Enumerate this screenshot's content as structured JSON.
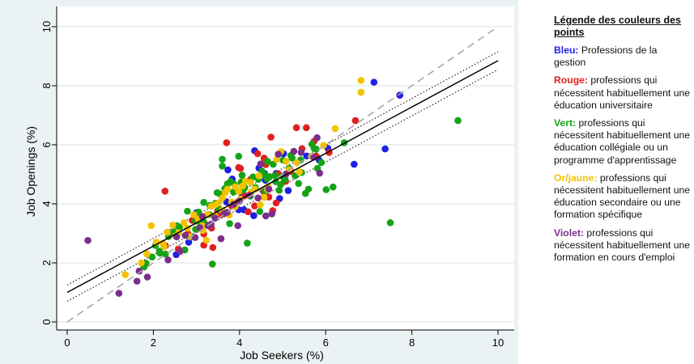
{
  "legend": {
    "title": "Légende des couleurs des points",
    "entries": [
      {
        "key": "Bleu:",
        "text": " Professions de la gestion",
        "color": "#1f1fe6"
      },
      {
        "key": "Rouge:",
        "text": " professions qui nécessitent habituellement une éducation universitaire",
        "color": "#e11f1f"
      },
      {
        "key": "Vert:",
        "text": " professions qui nécessitent habituellement une éducation collégiale ou un programme d'apprentissage",
        "color": "#14a314"
      },
      {
        "key": "Or/jaune:",
        "text": " professions qui nécessitent habituellement une éducation secondaire ou une formation spécifique",
        "color": "#f2c300"
      },
      {
        "key": "Violet:",
        "text": " professions qui nécessitent habituellement une formation en cours d'emploi",
        "color": "#7b2e8c"
      }
    ]
  },
  "chart_data": {
    "type": "scatter",
    "xlabel": "Job Seekers (%)",
    "ylabel": "Job Openings (%)",
    "xlim": [
      0,
      10
    ],
    "ylim": [
      0,
      10
    ],
    "xticks": [
      0,
      2,
      4,
      6,
      8,
      10
    ],
    "yticks": [
      0,
      2,
      4,
      6,
      8,
      10
    ],
    "grid": true,
    "colors": {
      "blue": "#1f1fe6",
      "red": "#e11f1f",
      "green": "#14a314",
      "gold": "#f2c300",
      "purple": "#7b2e8c",
      "fit": "#000000",
      "diagonal": "#a8a8a8"
    },
    "lines": {
      "fit": {
        "x": [
          0,
          10
        ],
        "y": [
          1.0,
          8.85
        ]
      },
      "ci_upper": {
        "x": [
          0,
          10
        ],
        "y": [
          1.25,
          9.15
        ]
      },
      "ci_lower": {
        "x": [
          0,
          10
        ],
        "y": [
          0.7,
          8.55
        ]
      },
      "diagonal": {
        "x": [
          0,
          10
        ],
        "y": [
          0,
          10
        ]
      }
    },
    "series": [
      {
        "color_key": "blue",
        "points": [
          [
            4.33,
            3.6
          ],
          [
            4.93,
            4.18
          ],
          [
            5.56,
            5.62
          ],
          [
            5.85,
            5.48
          ],
          [
            6.05,
            5.88
          ],
          [
            7.12,
            8.12
          ],
          [
            7.72,
            7.68
          ],
          [
            7.38,
            5.86
          ],
          [
            6.66,
            5.34
          ],
          [
            3.73,
            5.15
          ],
          [
            2.53,
            2.28
          ],
          [
            2.82,
            2.7
          ],
          [
            4.6,
            4.8
          ],
          [
            5.13,
            4.45
          ],
          [
            4.05,
            4.22
          ],
          [
            5.02,
            5.7
          ],
          [
            3.83,
            4.84
          ],
          [
            4.58,
            5.03
          ],
          [
            4.45,
            5.21
          ],
          [
            4.1,
            3.8
          ],
          [
            3.7,
            4.06
          ],
          [
            4.35,
            5.8
          ],
          [
            4.85,
            5.03
          ],
          [
            3.98,
            3.8
          ],
          [
            3.0,
            3.7
          ]
        ]
      },
      {
        "color_key": "red",
        "points": [
          [
            2.27,
            4.43
          ],
          [
            2.28,
            2.58
          ],
          [
            2.58,
            2.47
          ],
          [
            2.8,
            2.99
          ],
          [
            3.17,
            2.6
          ],
          [
            3.29,
            3.27
          ],
          [
            3.38,
            2.52
          ],
          [
            3.56,
            3.63
          ],
          [
            3.7,
            6.07
          ],
          [
            3.84,
            3.99
          ],
          [
            3.96,
            4.06
          ],
          [
            4.12,
            4.28
          ],
          [
            4.25,
            4.82
          ],
          [
            4.35,
            3.93
          ],
          [
            4.55,
            4.43
          ],
          [
            4.57,
            5.55
          ],
          [
            4.73,
            6.26
          ],
          [
            4.9,
            5.02
          ],
          [
            5.07,
            4.76
          ],
          [
            5.19,
            5.1
          ],
          [
            5.32,
            6.58
          ],
          [
            5.55,
            6.58
          ],
          [
            5.73,
            6.12
          ],
          [
            5.78,
            5.62
          ],
          [
            6.08,
            5.74
          ],
          [
            6.69,
            6.82
          ],
          [
            4.02,
            5.2
          ],
          [
            3.49,
            3.76
          ],
          [
            3.98,
            5.23
          ],
          [
            4.85,
            4.03
          ],
          [
            3.35,
            3.18
          ],
          [
            4.2,
            3.73
          ],
          [
            5.45,
            5.87
          ],
          [
            4.42,
            5.7
          ],
          [
            3.82,
            3.92
          ],
          [
            2.9,
            3.44
          ],
          [
            3.17,
            2.98
          ],
          [
            4.61,
            5.33
          ],
          [
            5.04,
            4.77
          ],
          [
            4.77,
            3.77
          ],
          [
            3.0,
            3.13
          ],
          [
            4.68,
            4.23
          ]
        ]
      },
      {
        "color_key": "green",
        "points": [
          [
            1.78,
            1.86
          ],
          [
            1.83,
            1.99
          ],
          [
            1.97,
            2.2
          ],
          [
            2.05,
            2.59
          ],
          [
            2.14,
            2.4
          ],
          [
            2.28,
            2.3
          ],
          [
            2.35,
            2.89
          ],
          [
            2.47,
            3.05
          ],
          [
            2.55,
            3.26
          ],
          [
            2.61,
            3.21
          ],
          [
            2.73,
            2.44
          ],
          [
            2.79,
            3.75
          ],
          [
            2.87,
            2.88
          ],
          [
            2.98,
            3.14
          ],
          [
            3.09,
            3.35
          ],
          [
            3.17,
            3.38
          ],
          [
            3.26,
            3.27
          ],
          [
            3.31,
            3.95
          ],
          [
            3.37,
            1.96
          ],
          [
            3.44,
            4.02
          ],
          [
            3.55,
            4.33
          ],
          [
            3.6,
            5.51
          ],
          [
            3.66,
            4.52
          ],
          [
            3.72,
            4.68
          ],
          [
            3.79,
            4.76
          ],
          [
            3.86,
            4.4
          ],
          [
            3.9,
            4.62
          ],
          [
            3.98,
            5.61
          ],
          [
            4.06,
            4.97
          ],
          [
            4.12,
            4.55
          ],
          [
            4.18,
            2.67
          ],
          [
            4.25,
            4.26
          ],
          [
            4.31,
            4.91
          ],
          [
            4.37,
            4.55
          ],
          [
            4.44,
            4.83
          ],
          [
            4.52,
            5.11
          ],
          [
            4.58,
            4.44
          ],
          [
            4.64,
            4.85
          ],
          [
            4.7,
            4.92
          ],
          [
            4.78,
            5.34
          ],
          [
            4.84,
            4.75
          ],
          [
            4.92,
            4.46
          ],
          [
            5.0,
            4.93
          ],
          [
            5.06,
            4.82
          ],
          [
            5.15,
            5.2
          ],
          [
            5.22,
            5.55
          ],
          [
            5.29,
            4.95
          ],
          [
            5.37,
            4.69
          ],
          [
            5.44,
            5.06
          ],
          [
            5.53,
            4.35
          ],
          [
            5.6,
            4.5
          ],
          [
            5.68,
            6.02
          ],
          [
            5.73,
            5.88
          ],
          [
            5.81,
            5.2
          ],
          [
            5.9,
            5.4
          ],
          [
            6.01,
            4.48
          ],
          [
            6.17,
            4.57
          ],
          [
            6.43,
            6.07
          ],
          [
            7.5,
            3.36
          ],
          [
            9.07,
            6.82
          ],
          [
            3.6,
            5.28
          ],
          [
            4.04,
            4.74
          ],
          [
            4.57,
            4.99
          ],
          [
            4.95,
            4.65
          ],
          [
            3.3,
            3.64
          ],
          [
            3.53,
            3.82
          ],
          [
            2.98,
            3.42
          ],
          [
            5.01,
            5.48
          ],
          [
            4.27,
            4.39
          ],
          [
            3.05,
            3.72
          ],
          [
            2.15,
            2.33
          ],
          [
            3.48,
            4.38
          ],
          [
            4.65,
            5.44
          ],
          [
            4.08,
            4.47
          ],
          [
            3.17,
            4.05
          ],
          [
            5.42,
            5.49
          ],
          [
            4.83,
            4.96
          ],
          [
            3.88,
            4.66
          ],
          [
            5.19,
            5.64
          ],
          [
            3.77,
            3.33
          ],
          [
            5.78,
            5.85
          ],
          [
            4.47,
            3.74
          ]
        ]
      },
      {
        "color_key": "gold",
        "points": [
          [
            1.35,
            1.6
          ],
          [
            1.72,
            2.0
          ],
          [
            1.85,
            2.3
          ],
          [
            1.95,
            3.26
          ],
          [
            2.07,
            2.7
          ],
          [
            2.22,
            2.67
          ],
          [
            2.32,
            3.04
          ],
          [
            2.45,
            3.28
          ],
          [
            2.59,
            3.02
          ],
          [
            2.71,
            3.36
          ],
          [
            2.83,
            2.89
          ],
          [
            2.94,
            3.63
          ],
          [
            3.04,
            3.48
          ],
          [
            3.14,
            3.26
          ],
          [
            3.23,
            2.77
          ],
          [
            3.34,
            3.92
          ],
          [
            3.43,
            3.6
          ],
          [
            3.51,
            4.03
          ],
          [
            3.6,
            4.2
          ],
          [
            3.67,
            4.38
          ],
          [
            3.72,
            4.5
          ],
          [
            3.76,
            3.62
          ],
          [
            3.9,
            3.9
          ],
          [
            3.98,
            4.42
          ],
          [
            4.07,
            4.6
          ],
          [
            4.14,
            4.77
          ],
          [
            4.26,
            4.38
          ],
          [
            4.36,
            4.5
          ],
          [
            4.48,
            3.97
          ],
          [
            4.57,
            4.22
          ],
          [
            4.66,
            4.58
          ],
          [
            4.86,
            5.5
          ],
          [
            4.96,
            5.77
          ],
          [
            5.15,
            5.15
          ],
          [
            5.33,
            5.39
          ],
          [
            5.39,
            5.08
          ],
          [
            5.67,
            5.61
          ],
          [
            5.95,
            5.98
          ],
          [
            6.22,
            6.55
          ],
          [
            6.82,
            7.78
          ],
          [
            6.82,
            8.18
          ],
          [
            4.26,
            4.73
          ],
          [
            3.15,
            3.1
          ],
          [
            2.79,
            3.18
          ],
          [
            3.45,
            3.98
          ],
          [
            4.65,
            4.48
          ],
          [
            3.82,
            4.06
          ],
          [
            2.52,
            2.91
          ],
          [
            3.26,
            3.64
          ],
          [
            4.02,
            4.16
          ],
          [
            5.08,
            5.44
          ],
          [
            3.6,
            3.78
          ],
          [
            2.25,
            2.55
          ],
          [
            4.45,
            4.95
          ],
          [
            3.9,
            4.58
          ]
        ]
      },
      {
        "color_key": "purple",
        "points": [
          [
            0.48,
            2.76
          ],
          [
            1.2,
            0.97
          ],
          [
            1.62,
            1.38
          ],
          [
            1.67,
            1.72
          ],
          [
            1.86,
            1.52
          ],
          [
            2.34,
            2.1
          ],
          [
            2.62,
            2.39
          ],
          [
            2.74,
            2.93
          ],
          [
            2.97,
            2.86
          ],
          [
            3.08,
            3.19
          ],
          [
            3.27,
            3.26
          ],
          [
            3.43,
            3.52
          ],
          [
            3.64,
            3.67
          ],
          [
            3.71,
            3.71
          ],
          [
            3.86,
            3.98
          ],
          [
            4.0,
            4.09
          ],
          [
            4.23,
            4.29
          ],
          [
            4.43,
            4.2
          ],
          [
            4.61,
            3.59
          ],
          [
            4.75,
            3.66
          ],
          [
            4.9,
            5.68
          ],
          [
            5.08,
            5.01
          ],
          [
            5.26,
            5.78
          ],
          [
            5.43,
            5.74
          ],
          [
            5.72,
            5.58
          ],
          [
            5.8,
            6.24
          ],
          [
            5.86,
            5.04
          ],
          [
            3.34,
            3.31
          ],
          [
            4.68,
            4.5
          ],
          [
            3.57,
            2.82
          ],
          [
            3.96,
            3.26
          ],
          [
            4.49,
            5.35
          ],
          [
            2.54,
            2.88
          ],
          [
            3.14,
            3.57
          ]
        ]
      }
    ]
  }
}
